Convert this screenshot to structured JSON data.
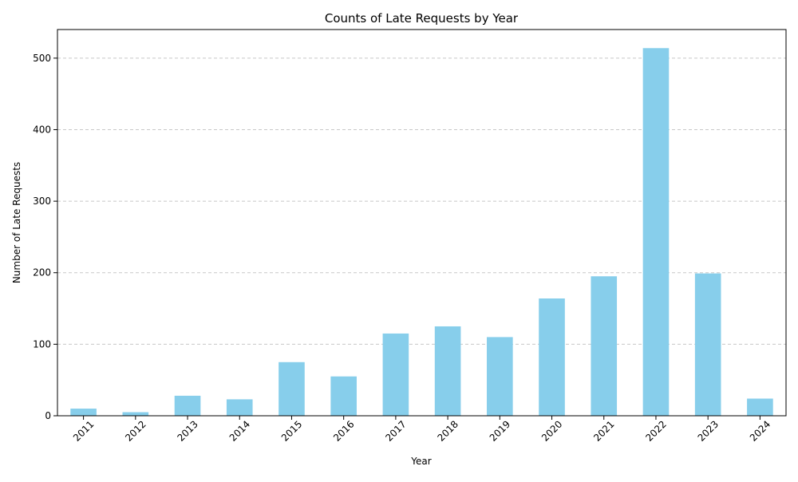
{
  "chart_data": {
    "type": "bar",
    "title": "Counts of Late Requests by Year",
    "xlabel": "Year",
    "ylabel": "Number of Late Requests",
    "categories": [
      "2011",
      "2012",
      "2013",
      "2014",
      "2015",
      "2016",
      "2017",
      "2018",
      "2019",
      "2020",
      "2021",
      "2022",
      "2023",
      "2024"
    ],
    "values": [
      10,
      5,
      28,
      23,
      75,
      55,
      115,
      125,
      110,
      164,
      195,
      514,
      199,
      24
    ],
    "ylim": [
      0,
      540
    ],
    "yticks": [
      0,
      100,
      200,
      300,
      400,
      500
    ],
    "grid": "y",
    "bar_color": "#87ceeb",
    "grid_color": "#c8c8c8",
    "xtick_rotation": 45
  }
}
